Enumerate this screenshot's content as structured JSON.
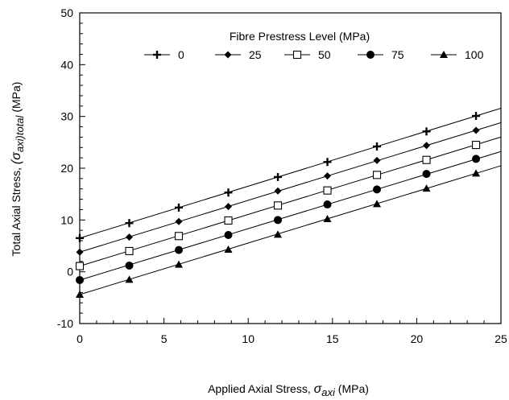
{
  "chart_data": {
    "type": "line",
    "xlabel": {
      "text": "Applied Axial Stress,",
      "symbol": "σ",
      "sub": "axi",
      "unit": "(MPa)"
    },
    "ylabel": {
      "text": "Total Axial Stress,",
      "symbol": "(σ",
      "sub": "axi)total",
      "unit": "(MPa)"
    },
    "xlim": [
      0,
      25
    ],
    "ylim": [
      -10,
      50
    ],
    "xticks": [
      0,
      5,
      10,
      15,
      20,
      25
    ],
    "yticks": [
      -10,
      0,
      10,
      20,
      30,
      40,
      50
    ],
    "grid": false,
    "legend": {
      "title": "Fibre Prestress Level (MPa)",
      "placement": "top-center"
    },
    "x": [
      0,
      2.94,
      5.88,
      8.82,
      11.76,
      14.7,
      17.64,
      20.58,
      23.52
    ],
    "series": [
      {
        "name": "0",
        "marker": "plus",
        "values": [
          6.5,
          9.4,
          12.4,
          15.3,
          18.3,
          21.2,
          24.2,
          27.1,
          30.1
        ]
      },
      {
        "name": "25",
        "marker": "diamond",
        "values": [
          3.8,
          6.7,
          9.7,
          12.6,
          15.6,
          18.5,
          21.5,
          24.4,
          27.3
        ]
      },
      {
        "name": "50",
        "marker": "open-square",
        "values": [
          1.1,
          4.0,
          6.9,
          9.9,
          12.8,
          15.7,
          18.7,
          21.6,
          24.5
        ]
      },
      {
        "name": "75",
        "marker": "filled-circle",
        "values": [
          -1.6,
          1.2,
          4.2,
          7.1,
          10.0,
          13.0,
          15.9,
          18.9,
          21.8
        ]
      },
      {
        "name": "100",
        "marker": "filled-triangle",
        "values": [
          -4.4,
          -1.5,
          1.4,
          4.3,
          7.2,
          10.2,
          13.1,
          16.1,
          19.0
        ]
      }
    ],
    "fit_lines": [
      {
        "series": "0",
        "intercept": 6.5,
        "slope": 1.003
      },
      {
        "series": "25",
        "intercept": 3.8,
        "slope": 1.0
      },
      {
        "series": "50",
        "intercept": 1.1,
        "slope": 0.997
      },
      {
        "series": "75",
        "intercept": -1.6,
        "slope": 0.993
      },
      {
        "series": "100",
        "intercept": -4.4,
        "slope": 0.995
      }
    ]
  }
}
